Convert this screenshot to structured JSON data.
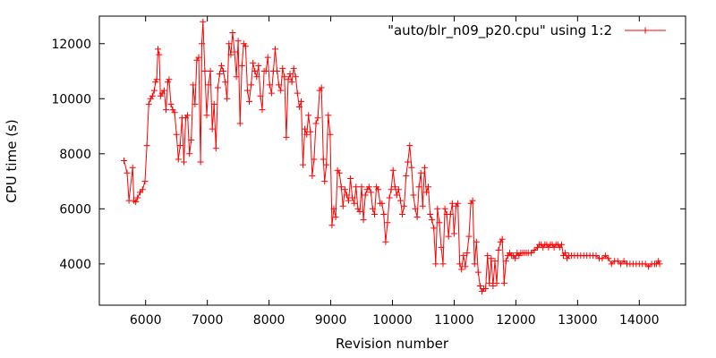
{
  "chart_data": {
    "type": "line",
    "title": "",
    "xlabel": "Revision number",
    "ylabel": "CPU time (s)",
    "xlim": [
      5250,
      14750
    ],
    "ylim": [
      2500,
      13000
    ],
    "x_ticks": [
      6000,
      7000,
      8000,
      9000,
      10000,
      11000,
      12000,
      13000,
      14000
    ],
    "y_ticks": [
      4000,
      6000,
      8000,
      10000,
      12000
    ],
    "grid": false,
    "legend_position": "top-right",
    "series_color": "#ff0000",
    "marker": "plus",
    "series": [
      {
        "name": "\"auto/blr_n09_p20.cpu\" using 1:2",
        "points": [
          [
            5650,
            7750
          ],
          [
            5700,
            7300
          ],
          [
            5730,
            6300
          ],
          [
            5790,
            7500
          ],
          [
            5810,
            6300
          ],
          [
            5840,
            6250
          ],
          [
            5870,
            6400
          ],
          [
            5910,
            6600
          ],
          [
            5950,
            6700
          ],
          [
            5990,
            7000
          ],
          [
            6020,
            8300
          ],
          [
            6050,
            9800
          ],
          [
            6080,
            10000
          ],
          [
            6110,
            10100
          ],
          [
            6140,
            10300
          ],
          [
            6160,
            10600
          ],
          [
            6180,
            10700
          ],
          [
            6200,
            11800
          ],
          [
            6220,
            11600
          ],
          [
            6240,
            10100
          ],
          [
            6270,
            10200
          ],
          [
            6300,
            10300
          ],
          [
            6330,
            9600
          ],
          [
            6360,
            10600
          ],
          [
            6380,
            10700
          ],
          [
            6410,
            9800
          ],
          [
            6440,
            9600
          ],
          [
            6470,
            9500
          ],
          [
            6500,
            8700
          ],
          [
            6530,
            7800
          ],
          [
            6560,
            8300
          ],
          [
            6590,
            9300
          ],
          [
            6620,
            7700
          ],
          [
            6650,
            9300
          ],
          [
            6680,
            9400
          ],
          [
            6710,
            8000
          ],
          [
            6740,
            8500
          ],
          [
            6770,
            10500
          ],
          [
            6800,
            9800
          ],
          [
            6830,
            11400
          ],
          [
            6860,
            11500
          ],
          [
            6890,
            7700
          ],
          [
            6910,
            12000
          ],
          [
            6930,
            12800
          ],
          [
            6960,
            11000
          ],
          [
            6990,
            9400
          ],
          [
            7020,
            10500
          ],
          [
            7050,
            11000
          ],
          [
            7080,
            8900
          ],
          [
            7110,
            9800
          ],
          [
            7140,
            8200
          ],
          [
            7170,
            10400
          ],
          [
            7200,
            10900
          ],
          [
            7230,
            11200
          ],
          [
            7260,
            11000
          ],
          [
            7290,
            10600
          ],
          [
            7320,
            10000
          ],
          [
            7350,
            12000
          ],
          [
            7380,
            11600
          ],
          [
            7410,
            12400
          ],
          [
            7440,
            11700
          ],
          [
            7470,
            10800
          ],
          [
            7500,
            12100
          ],
          [
            7530,
            9100
          ],
          [
            7560,
            11200
          ],
          [
            7590,
            12000
          ],
          [
            7620,
            11900
          ],
          [
            7650,
            10300
          ],
          [
            7680,
            9900
          ],
          [
            7710,
            10500
          ],
          [
            7740,
            11300
          ],
          [
            7770,
            11000
          ],
          [
            7800,
            10800
          ],
          [
            7830,
            11200
          ],
          [
            7860,
            10100
          ],
          [
            7890,
            9600
          ],
          [
            7920,
            11000
          ],
          [
            7950,
            11000
          ],
          [
            7980,
            11500
          ],
          [
            8010,
            10500
          ],
          [
            8040,
            10200
          ],
          [
            8070,
            11000
          ],
          [
            8100,
            11800
          ],
          [
            8130,
            11000
          ],
          [
            8160,
            10500
          ],
          [
            8190,
            10300
          ],
          [
            8220,
            11100
          ],
          [
            8250,
            10800
          ],
          [
            8280,
            8600
          ],
          [
            8310,
            10700
          ],
          [
            8340,
            10900
          ],
          [
            8370,
            10600
          ],
          [
            8400,
            11100
          ],
          [
            8430,
            10800
          ],
          [
            8460,
            10200
          ],
          [
            8490,
            9700
          ],
          [
            8520,
            9900
          ],
          [
            8550,
            7600
          ],
          [
            8580,
            8900
          ],
          [
            8610,
            8700
          ],
          [
            8640,
            9400
          ],
          [
            8670,
            8800
          ],
          [
            8700,
            7200
          ],
          [
            8730,
            7800
          ],
          [
            8760,
            9100
          ],
          [
            8790,
            9300
          ],
          [
            8820,
            10300
          ],
          [
            8850,
            10400
          ],
          [
            8880,
            7800
          ],
          [
            8900,
            7000
          ],
          [
            8930,
            7600
          ],
          [
            8960,
            9400
          ],
          [
            8990,
            8700
          ],
          [
            9020,
            5400
          ],
          [
            9050,
            6000
          ],
          [
            9080,
            5700
          ],
          [
            9110,
            7400
          ],
          [
            9140,
            7300
          ],
          [
            9170,
            6800
          ],
          [
            9200,
            6100
          ],
          [
            9230,
            6700
          ],
          [
            9260,
            6500
          ],
          [
            9290,
            6300
          ],
          [
            9320,
            7100
          ],
          [
            9350,
            6400
          ],
          [
            9380,
            6200
          ],
          [
            9410,
            6800
          ],
          [
            9440,
            6000
          ],
          [
            9470,
            5900
          ],
          [
            9500,
            6800
          ],
          [
            9530,
            5600
          ],
          [
            9560,
            6500
          ],
          [
            9590,
            6700
          ],
          [
            9620,
            6800
          ],
          [
            9650,
            6600
          ],
          [
            9680,
            6000
          ],
          [
            9710,
            5800
          ],
          [
            9740,
            6800
          ],
          [
            9770,
            6700
          ],
          [
            9800,
            6200
          ],
          [
            9830,
            6200
          ],
          [
            9860,
            5800
          ],
          [
            9890,
            4800
          ],
          [
            9920,
            5500
          ],
          [
            9950,
            6400
          ],
          [
            9980,
            6700
          ],
          [
            10010,
            7400
          ],
          [
            10040,
            6800
          ],
          [
            10070,
            6500
          ],
          [
            10100,
            6700
          ],
          [
            10130,
            6300
          ],
          [
            10160,
            5800
          ],
          [
            10190,
            6100
          ],
          [
            10220,
            7200
          ],
          [
            10250,
            7700
          ],
          [
            10280,
            8300
          ],
          [
            10310,
            7500
          ],
          [
            10340,
            6500
          ],
          [
            10370,
            6000
          ],
          [
            10400,
            5700
          ],
          [
            10430,
            6800
          ],
          [
            10460,
            7300
          ],
          [
            10490,
            6100
          ],
          [
            10520,
            7500
          ],
          [
            10550,
            6600
          ],
          [
            10580,
            6800
          ],
          [
            10610,
            5800
          ],
          [
            10640,
            5600
          ],
          [
            10670,
            5300
          ],
          [
            10700,
            4000
          ],
          [
            10730,
            6000
          ],
          [
            10760,
            5500
          ],
          [
            10790,
            4600
          ],
          [
            10820,
            4000
          ],
          [
            10850,
            6000
          ],
          [
            10880,
            5800
          ],
          [
            10910,
            5000
          ],
          [
            10940,
            5800
          ],
          [
            10970,
            6200
          ],
          [
            11000,
            5100
          ],
          [
            11030,
            6100
          ],
          [
            11060,
            6200
          ],
          [
            11090,
            4000
          ],
          [
            11120,
            3800
          ],
          [
            11150,
            4300
          ],
          [
            11180,
            3900
          ],
          [
            11210,
            4400
          ],
          [
            11240,
            5000
          ],
          [
            11270,
            6200
          ],
          [
            11300,
            6300
          ],
          [
            11330,
            4000
          ],
          [
            11360,
            4800
          ],
          [
            11390,
            3700
          ],
          [
            11420,
            3200
          ],
          [
            11450,
            3000
          ],
          [
            11480,
            3100
          ],
          [
            11510,
            3100
          ],
          [
            11540,
            4300
          ],
          [
            11570,
            3300
          ],
          [
            11600,
            4200
          ],
          [
            11630,
            3200
          ],
          [
            11660,
            4100
          ],
          [
            11690,
            3300
          ],
          [
            11720,
            4500
          ],
          [
            11750,
            4800
          ],
          [
            11780,
            4900
          ],
          [
            11810,
            3300
          ],
          [
            11840,
            4100
          ],
          [
            11870,
            4300
          ],
          [
            11900,
            4400
          ],
          [
            11930,
            4300
          ],
          [
            11960,
            4300
          ],
          [
            11990,
            4200
          ],
          [
            12020,
            4400
          ],
          [
            12050,
            4300
          ],
          [
            12080,
            4400
          ],
          [
            12110,
            4400
          ],
          [
            12140,
            4400
          ],
          [
            12170,
            4400
          ],
          [
            12200,
            4400
          ],
          [
            12250,
            4400
          ],
          [
            12300,
            4500
          ],
          [
            12350,
            4600
          ],
          [
            12380,
            4700
          ],
          [
            12410,
            4700
          ],
          [
            12440,
            4600
          ],
          [
            12470,
            4700
          ],
          [
            12500,
            4700
          ],
          [
            12530,
            4600
          ],
          [
            12560,
            4700
          ],
          [
            12590,
            4700
          ],
          [
            12620,
            4600
          ],
          [
            12650,
            4700
          ],
          [
            12680,
            4700
          ],
          [
            12710,
            4600
          ],
          [
            12740,
            4700
          ],
          [
            12770,
            4300
          ],
          [
            12800,
            4400
          ],
          [
            12830,
            4200
          ],
          [
            12860,
            4300
          ],
          [
            12900,
            4300
          ],
          [
            12950,
            4300
          ],
          [
            13000,
            4300
          ],
          [
            13050,
            4300
          ],
          [
            13100,
            4300
          ],
          [
            13150,
            4300
          ],
          [
            13200,
            4300
          ],
          [
            13250,
            4300
          ],
          [
            13300,
            4300
          ],
          [
            13350,
            4200
          ],
          [
            13400,
            4200
          ],
          [
            13450,
            4300
          ],
          [
            13500,
            4200
          ],
          [
            13550,
            4000
          ],
          [
            13600,
            4100
          ],
          [
            13650,
            4100
          ],
          [
            13700,
            4000
          ],
          [
            13750,
            4100
          ],
          [
            13800,
            4000
          ],
          [
            13850,
            4000
          ],
          [
            13900,
            4000
          ],
          [
            13950,
            4000
          ],
          [
            14000,
            4000
          ],
          [
            14050,
            4000
          ],
          [
            14100,
            4000
          ],
          [
            14150,
            3900
          ],
          [
            14200,
            4000
          ],
          [
            14250,
            4000
          ],
          [
            14280,
            4000
          ],
          [
            14310,
            4100
          ],
          [
            14330,
            4000
          ]
        ]
      }
    ]
  }
}
